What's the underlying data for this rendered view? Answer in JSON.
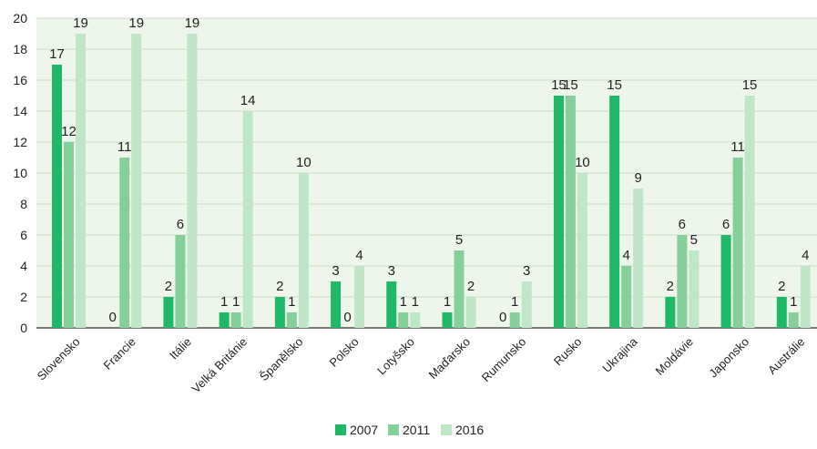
{
  "chart_data": {
    "type": "bar",
    "categories": [
      "Slovensko",
      "Francie",
      "Itálie",
      "Velká Británie",
      "Španělsko",
      "Polsko",
      "Lotyšsko",
      "Maďarsko",
      "Rumunsko",
      "Rusko",
      "Ukrajina",
      "Moldávie",
      "Japonsko",
      "Austrálie"
    ],
    "series": [
      {
        "name": "2007",
        "color": "#1fb866",
        "values": [
          17,
          0,
          2,
          1,
          2,
          3,
          3,
          1,
          0,
          15,
          15,
          2,
          6,
          2
        ]
      },
      {
        "name": "2011",
        "color": "#86cf98",
        "values": [
          12,
          11,
          6,
          1,
          1,
          0,
          1,
          5,
          1,
          15,
          4,
          6,
          11,
          1
        ]
      },
      {
        "name": "2016",
        "color": "#bfe6c7",
        "values": [
          19,
          19,
          19,
          14,
          10,
          4,
          1,
          2,
          3,
          10,
          9,
          5,
          15,
          4
        ]
      }
    ],
    "ylim": [
      0,
      20
    ],
    "yticks": [
      0,
      2,
      4,
      6,
      8,
      10,
      12,
      14,
      16,
      18,
      20
    ],
    "grid": true,
    "legend_position": "bottom-center",
    "plot_background": "#eef6ec"
  }
}
